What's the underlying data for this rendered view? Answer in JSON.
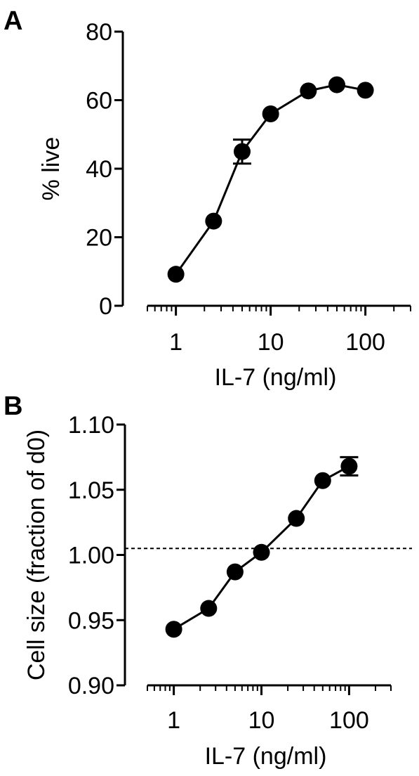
{
  "chart_data": [
    {
      "panel": "A",
      "type": "line",
      "x_scale": "log",
      "xlim": [
        0.5,
        300
      ],
      "ylim": [
        0,
        80
      ],
      "xticks": [
        1,
        10,
        100
      ],
      "xtick_labels": [
        "1",
        "10",
        "100"
      ],
      "yticks": [
        0,
        20,
        40,
        60,
        80
      ],
      "ytick_labels": [
        "0",
        "20",
        "40",
        "60",
        "80"
      ],
      "xlabel": "IL-7 (ng/ml)",
      "ylabel": "% live",
      "series": [
        {
          "x": [
            1,
            2.5,
            5,
            10,
            25,
            50,
            100
          ],
          "y": [
            9.2,
            24.7,
            45,
            56,
            62.7,
            64.5,
            62.9
          ],
          "error": [
            0,
            0,
            3.5,
            0,
            0,
            0,
            0
          ],
          "color": "#000000"
        }
      ]
    },
    {
      "panel": "B",
      "type": "line",
      "x_scale": "log",
      "xlim": [
        0.5,
        300
      ],
      "ylim": [
        0.9,
        1.1
      ],
      "xticks": [
        1,
        10,
        100
      ],
      "xtick_labels": [
        "1",
        "10",
        "100"
      ],
      "yticks": [
        0.9,
        0.95,
        1.0,
        1.05,
        1.1
      ],
      "ytick_labels": [
        "0.90",
        "0.95",
        "1.00",
        "1.05",
        "1.10"
      ],
      "xlabel": "IL-7 (ng/ml)",
      "ylabel": "Cell size (fraction of d0)",
      "reference_line": {
        "y": 1.005,
        "style": "dashed"
      },
      "series": [
        {
          "x": [
            1,
            2.5,
            5,
            10,
            25,
            50,
            100
          ],
          "y": [
            0.943,
            0.959,
            0.987,
            1.002,
            1.028,
            1.057,
            1.068
          ],
          "error": [
            0,
            0,
            0,
            0,
            0,
            0,
            0.007
          ],
          "color": "#000000"
        }
      ]
    }
  ]
}
